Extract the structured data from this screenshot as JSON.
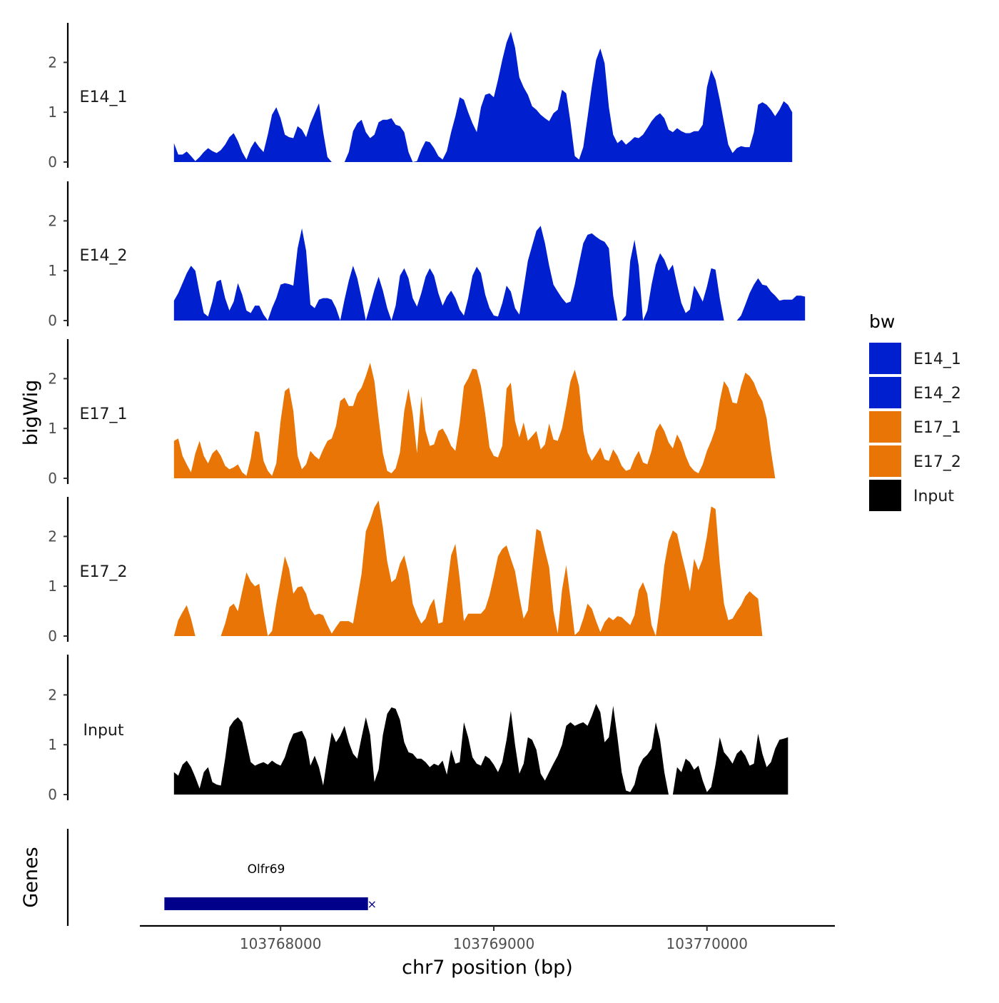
{
  "chart_data": {
    "type": "area",
    "title": "",
    "xlabel": "chr7 position (bp)",
    "ylabel": "bigWig",
    "xlim": [
      103767340,
      103770600
    ],
    "ylim": [
      0,
      2.8
    ],
    "x_ticks": [
      103768000,
      103769000,
      103770000
    ],
    "x_tick_labels": [
      "103768000",
      "103769000",
      "103770000"
    ],
    "y_ticks": [
      0,
      1,
      2
    ],
    "y_tick_labels": [
      "0",
      "1",
      "2"
    ],
    "bin_step": 20,
    "x_start": 103767500,
    "legend": {
      "title": "bw",
      "position": "right",
      "entries": [
        {
          "label": "E14_1",
          "color": "#0020D0"
        },
        {
          "label": "E14_2",
          "color": "#0020D0"
        },
        {
          "label": "E17_1",
          "color": "#E87505"
        },
        {
          "label": "E17_2",
          "color": "#E87505"
        },
        {
          "label": "Input",
          "color": "#000000"
        }
      ]
    },
    "series": [
      {
        "name": "E14_1",
        "color": "#0020D0",
        "values": [
          0.38,
          0.15,
          0.15,
          0.21,
          0.12,
          0.02,
          0.1,
          0.2,
          0.28,
          0.22,
          0.18,
          0.24,
          0.35,
          0.5,
          0.58,
          0.42,
          0.2,
          0.05,
          0.28,
          0.42,
          0.3,
          0.2,
          0.55,
          0.95,
          1.1,
          0.88,
          0.55,
          0.5,
          0.48,
          0.72,
          0.65,
          0.5,
          0.78,
          0.98,
          1.18,
          0.6,
          0.1,
          0.0,
          0.0,
          0.0,
          0.0,
          0.2,
          0.62,
          0.78,
          0.85,
          0.6,
          0.48,
          0.55,
          0.8,
          0.85,
          0.85,
          0.88,
          0.75,
          0.72,
          0.6,
          0.2,
          0.0,
          0.02,
          0.25,
          0.42,
          0.4,
          0.28,
          0.12,
          0.05,
          0.22,
          0.6,
          0.92,
          1.3,
          1.25,
          1.0,
          0.78,
          0.6,
          1.1,
          1.35,
          1.38,
          1.3,
          1.65,
          2.05,
          2.4,
          2.62,
          2.3,
          1.7,
          1.5,
          1.35,
          1.12,
          1.05,
          0.95,
          0.88,
          0.82,
          0.98,
          1.05,
          1.45,
          1.38,
          0.8,
          0.12,
          0.05,
          0.3,
          0.9,
          1.52,
          2.05,
          2.28,
          1.98,
          1.1,
          0.55,
          0.38,
          0.45,
          0.35,
          0.42,
          0.5,
          0.48,
          0.55,
          0.68,
          0.82,
          0.92,
          0.98,
          0.88,
          0.65,
          0.6,
          0.68,
          0.62,
          0.58,
          0.58,
          0.62,
          0.62,
          0.75,
          1.5,
          1.85,
          1.65,
          1.25,
          0.8,
          0.35,
          0.18,
          0.28,
          0.32,
          0.3,
          0.3,
          0.6,
          1.15,
          1.2,
          1.15,
          1.05,
          0.92,
          1.05,
          1.22,
          1.15,
          1.0
        ]
      },
      {
        "name": "E14_2",
        "color": "#0020D0",
        "values": [
          0.4,
          0.55,
          0.75,
          0.95,
          1.1,
          1.0,
          0.55,
          0.15,
          0.08,
          0.38,
          0.78,
          0.82,
          0.45,
          0.2,
          0.38,
          0.75,
          0.52,
          0.2,
          0.15,
          0.3,
          0.3,
          0.12,
          0.0,
          0.25,
          0.45,
          0.72,
          0.75,
          0.73,
          0.7,
          1.45,
          1.85,
          1.4,
          0.32,
          0.25,
          0.42,
          0.45,
          0.45,
          0.42,
          0.25,
          0.0,
          0.42,
          0.8,
          1.1,
          0.85,
          0.45,
          0.0,
          0.3,
          0.62,
          0.88,
          0.6,
          0.25,
          0.0,
          0.3,
          0.9,
          1.05,
          0.85,
          0.45,
          0.28,
          0.55,
          0.88,
          1.05,
          0.9,
          0.55,
          0.3,
          0.48,
          0.6,
          0.45,
          0.22,
          0.1,
          0.45,
          0.9,
          1.08,
          0.95,
          0.52,
          0.25,
          0.1,
          0.08,
          0.35,
          0.7,
          0.58,
          0.25,
          0.12,
          0.65,
          1.2,
          1.5,
          1.8,
          1.9,
          1.55,
          1.1,
          0.72,
          0.58,
          0.45,
          0.35,
          0.38,
          0.72,
          1.15,
          1.55,
          1.72,
          1.75,
          1.68,
          1.62,
          1.58,
          1.45,
          0.5,
          0.0,
          0.0,
          0.1,
          1.2,
          1.62,
          1.1,
          0.0,
          0.2,
          0.72,
          1.12,
          1.35,
          1.22,
          1.0,
          1.12,
          0.72,
          0.35,
          0.15,
          0.22,
          0.7,
          0.55,
          0.38,
          0.68,
          1.05,
          1.02,
          0.45,
          0.0,
          0.0,
          0.0,
          0.0,
          0.1,
          0.32,
          0.55,
          0.72,
          0.85,
          0.72,
          0.7,
          0.58,
          0.5,
          0.4,
          0.42,
          0.42,
          0.42,
          0.5,
          0.5,
          0.48
        ]
      },
      {
        "name": "E17_1",
        "color": "#E87505",
        "values": [
          0.75,
          0.8,
          0.45,
          0.28,
          0.12,
          0.5,
          0.75,
          0.45,
          0.3,
          0.5,
          0.58,
          0.45,
          0.25,
          0.18,
          0.22,
          0.28,
          0.12,
          0.05,
          0.4,
          0.95,
          0.92,
          0.35,
          0.15,
          0.05,
          0.3,
          1.15,
          1.75,
          1.82,
          1.35,
          0.45,
          0.18,
          0.28,
          0.55,
          0.45,
          0.38,
          0.58,
          0.75,
          0.8,
          1.05,
          1.55,
          1.62,
          1.45,
          1.45,
          1.7,
          1.82,
          2.05,
          2.32,
          1.95,
          1.2,
          0.5,
          0.15,
          0.1,
          0.2,
          0.52,
          1.35,
          1.8,
          1.3,
          0.5,
          1.65,
          0.95,
          0.65,
          0.68,
          0.95,
          1.0,
          0.85,
          0.65,
          0.55,
          1.1,
          1.85,
          2.0,
          2.2,
          2.18,
          1.85,
          1.3,
          0.62,
          0.45,
          0.42,
          0.65,
          1.8,
          1.92,
          1.15,
          0.82,
          1.12,
          0.75,
          0.85,
          0.95,
          0.58,
          0.68,
          1.1,
          0.78,
          0.75,
          1.0,
          1.45,
          1.95,
          2.18,
          1.85,
          0.95,
          0.52,
          0.35,
          0.48,
          0.62,
          0.38,
          0.35,
          0.58,
          0.45,
          0.25,
          0.15,
          0.18,
          0.4,
          0.55,
          0.32,
          0.28,
          0.55,
          0.95,
          1.1,
          0.95,
          0.72,
          0.6,
          0.88,
          0.72,
          0.45,
          0.25,
          0.15,
          0.1,
          0.28,
          0.55,
          0.75,
          1.0,
          1.55,
          1.95,
          1.82,
          1.52,
          1.5,
          1.85,
          2.12,
          2.05,
          1.92,
          1.7,
          1.55,
          1.2,
          0.55,
          0.0
        ]
      },
      {
        "name": "E17_2",
        "color": "#E87505",
        "values": [
          0.0,
          0.32,
          0.48,
          0.62,
          0.35,
          0.0,
          0.0,
          0.0,
          0.0,
          0.0,
          0.0,
          0.0,
          0.25,
          0.58,
          0.65,
          0.5,
          0.9,
          1.28,
          1.1,
          1.0,
          1.05,
          0.5,
          0.0,
          0.1,
          0.65,
          1.12,
          1.6,
          1.35,
          0.85,
          0.98,
          1.0,
          0.85,
          0.55,
          0.42,
          0.45,
          0.42,
          0.22,
          0.05,
          0.18,
          0.3,
          0.3,
          0.3,
          0.25,
          0.75,
          1.25,
          2.1,
          2.32,
          2.58,
          2.72,
          2.18,
          1.5,
          1.08,
          1.15,
          1.45,
          1.62,
          1.25,
          0.65,
          0.42,
          0.25,
          0.35,
          0.6,
          0.75,
          0.25,
          0.28,
          0.95,
          1.62,
          1.85,
          1.15,
          0.3,
          0.45,
          0.45,
          0.45,
          0.45,
          0.55,
          0.82,
          1.2,
          1.6,
          1.75,
          1.82,
          1.55,
          1.3,
          0.8,
          0.35,
          0.52,
          1.35,
          2.15,
          2.1,
          1.72,
          1.38,
          0.5,
          0.05,
          0.92,
          1.42,
          0.75,
          0.02,
          0.1,
          0.35,
          0.65,
          0.55,
          0.3,
          0.08,
          0.28,
          0.38,
          0.32,
          0.4,
          0.38,
          0.3,
          0.22,
          0.42,
          0.92,
          1.08,
          0.85,
          0.22,
          0.0,
          0.62,
          1.42,
          1.9,
          2.12,
          2.05,
          1.65,
          1.3,
          0.9,
          1.55,
          1.32,
          1.55,
          2.0,
          2.6,
          2.55,
          1.45,
          0.65,
          0.32,
          0.35,
          0.5,
          0.62,
          0.8,
          0.9,
          0.82,
          0.75,
          0.0,
          0.0
        ]
      },
      {
        "name": "Input",
        "color": "#000000",
        "values": [
          0.45,
          0.38,
          0.6,
          0.68,
          0.55,
          0.35,
          0.12,
          0.45,
          0.55,
          0.25,
          0.2,
          0.18,
          0.72,
          1.35,
          1.48,
          1.55,
          1.45,
          1.05,
          0.65,
          0.58,
          0.62,
          0.65,
          0.6,
          0.68,
          0.62,
          0.58,
          0.75,
          1.02,
          1.22,
          1.25,
          1.28,
          1.1,
          0.58,
          0.78,
          0.55,
          0.18,
          0.75,
          1.25,
          1.05,
          1.18,
          1.38,
          1.05,
          0.82,
          0.72,
          1.15,
          1.55,
          1.2,
          0.25,
          0.5,
          1.2,
          1.62,
          1.75,
          1.72,
          1.5,
          1.05,
          0.85,
          0.82,
          0.72,
          0.72,
          0.65,
          0.55,
          0.62,
          0.58,
          0.68,
          0.4,
          0.9,
          0.62,
          0.65,
          1.45,
          1.15,
          0.75,
          0.62,
          0.58,
          0.78,
          0.72,
          0.6,
          0.45,
          0.65,
          1.1,
          1.68,
          1.0,
          0.42,
          0.62,
          1.15,
          1.1,
          0.9,
          0.42,
          0.28,
          0.45,
          0.62,
          0.78,
          1.0,
          1.38,
          1.45,
          1.38,
          1.42,
          1.45,
          1.38,
          1.58,
          1.82,
          1.65,
          1.05,
          1.15,
          1.78,
          1.15,
          0.45,
          0.08,
          0.05,
          0.2,
          0.55,
          0.72,
          0.8,
          0.92,
          1.45,
          1.1,
          0.45,
          0.0,
          0.0,
          0.55,
          0.45,
          0.72,
          0.65,
          0.5,
          0.58,
          0.28,
          0.05,
          0.15,
          0.6,
          1.15,
          0.85,
          0.75,
          0.62,
          0.82,
          0.9,
          0.78,
          0.58,
          0.62,
          1.22,
          0.82,
          0.55,
          0.65,
          0.92,
          1.1,
          1.12,
          1.15
        ]
      }
    ],
    "genes_track": {
      "label": "Genes",
      "genes": [
        {
          "name": "Olfr69",
          "start": 103767455,
          "end": 103768410,
          "color": "#00008B"
        }
      ]
    }
  }
}
